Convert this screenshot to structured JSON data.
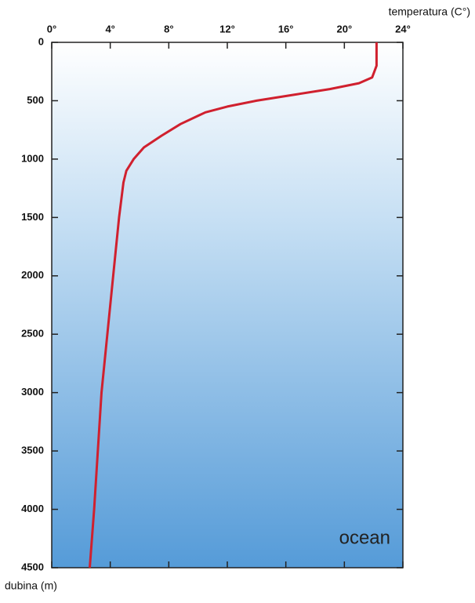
{
  "chart_data": {
    "type": "line",
    "x_label": "temperatura (C°)",
    "y_label": "dubina (m)",
    "annotation": "ocean",
    "x": [
      22.2,
      22.2,
      21.9,
      21,
      19,
      16.5,
      14,
      12,
      10.5,
      8.8,
      7.5,
      6.3,
      5.6,
      5.1,
      4.9,
      4.6,
      4.2,
      3.4,
      2.9,
      2.6
    ],
    "values": [
      0,
      200,
      300,
      350,
      400,
      450,
      500,
      550,
      600,
      700,
      800,
      900,
      1000,
      1100,
      1200,
      1500,
      2000,
      3000,
      4000,
      4500
    ],
    "color": "#d0202e",
    "xlim": [
      0,
      24
    ],
    "ylim": [
      0,
      4500
    ],
    "y_inverted": true,
    "xticks": [
      {
        "value": 0,
        "label": "0°"
      },
      {
        "value": 4,
        "label": "4°"
      },
      {
        "value": 8,
        "label": "8°"
      },
      {
        "value": 12,
        "label": "12°"
      },
      {
        "value": 16,
        "label": "16°"
      },
      {
        "value": 20,
        "label": "20°"
      },
      {
        "value": 24,
        "label": "24°"
      }
    ],
    "yticks": [
      0,
      500,
      1000,
      1500,
      2000,
      2500,
      3000,
      3500,
      4000,
      4500
    ]
  }
}
